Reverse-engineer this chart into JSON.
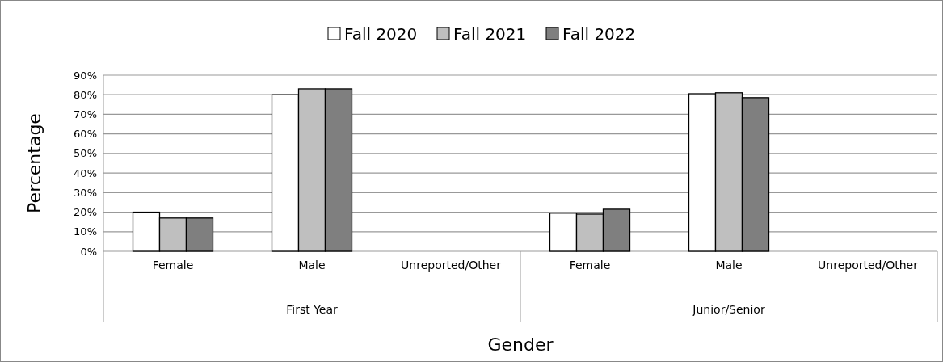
{
  "chart_data": {
    "type": "bar",
    "xlabel": "Gender",
    "ylabel": "Percentage",
    "categories": [
      "Female",
      "Male",
      "Unreported/Other",
      "Female",
      "Male",
      "Unreported/Other"
    ],
    "annotations": [
      "First Year",
      "Junior/Senior"
    ],
    "series": [
      {
        "name": "Fall 2020",
        "color": "#ffffff",
        "values": [
          20,
          80,
          0,
          19.5,
          80.5,
          0
        ]
      },
      {
        "name": "Fall 2021",
        "color": "#bfbfbf",
        "values": [
          17,
          83,
          0,
          19,
          81,
          0
        ]
      },
      {
        "name": "Fall 2022",
        "color": "#7f7f7f",
        "values": [
          17,
          83,
          0,
          21.5,
          78.5,
          0
        ]
      }
    ],
    "ylim": [
      0,
      90
    ],
    "yticks": [
      {
        "value": 0,
        "label": "0%"
      },
      {
        "value": 10,
        "label": "10%"
      },
      {
        "value": 20,
        "label": "20%"
      },
      {
        "value": 30,
        "label": "30%"
      },
      {
        "value": 40,
        "label": "40%"
      },
      {
        "value": 50,
        "label": "50%"
      },
      {
        "value": 60,
        "label": "60%"
      },
      {
        "value": 70,
        "label": "70%"
      },
      {
        "value": 80,
        "label": "80%"
      },
      {
        "value": 90,
        "label": "90%"
      }
    ],
    "grid": "y",
    "legend": "top"
  }
}
